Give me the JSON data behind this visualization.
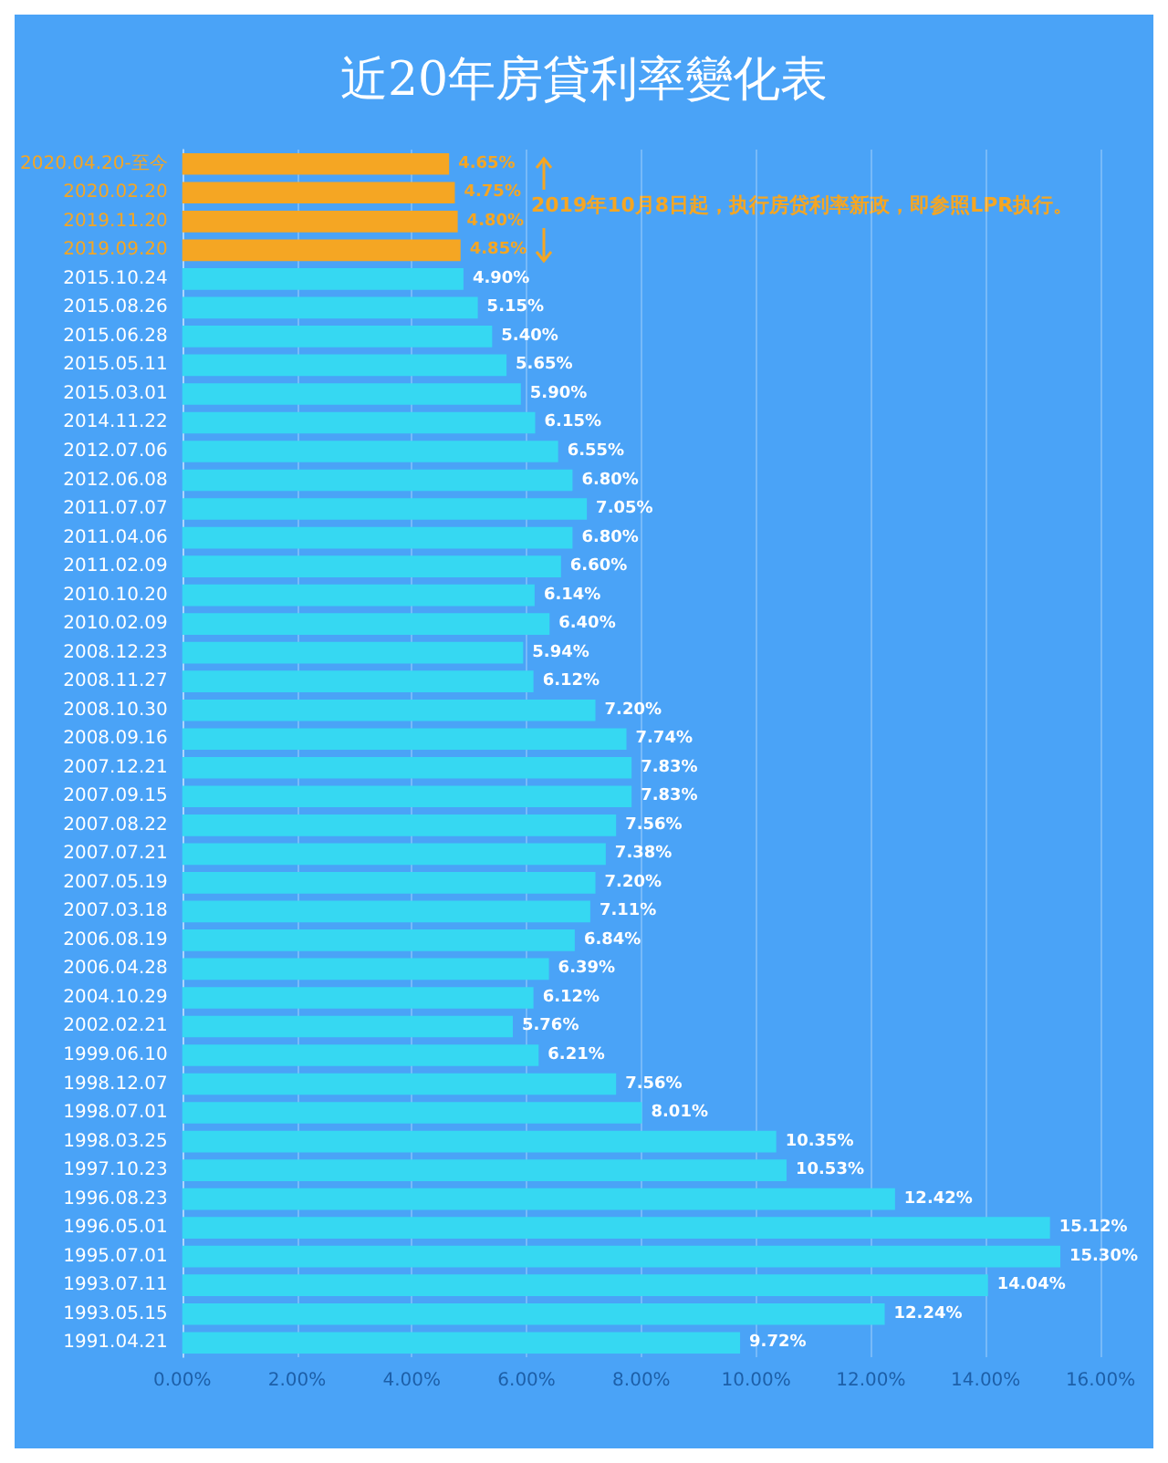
{
  "chart_data": {
    "type": "bar",
    "orientation": "horizontal",
    "title": "近20年房貸利率變化表",
    "categories": [
      "2020.04.20-至今",
      "2020.02.20",
      "2019.11.20",
      "2019.09.20",
      "2015.10.24",
      "2015.08.26",
      "2015.06.28",
      "2015.05.11",
      "2015.03.01",
      "2014.11.22",
      "2012.07.06",
      "2012.06.08",
      "2011.07.07",
      "2011.04.06",
      "2011.02.09",
      "2010.10.20",
      "2010.02.09",
      "2008.12.23",
      "2008.11.27",
      "2008.10.30",
      "2008.09.16",
      "2007.12.21",
      "2007.09.15",
      "2007.08.22",
      "2007.07.21",
      "2007.05.19",
      "2007.03.18",
      "2006.08.19",
      "2006.04.28",
      "2004.10.29",
      "2002.02.21",
      "1999.06.10",
      "1998.12.07",
      "1998.07.01",
      "1998.03.25",
      "1997.10.23",
      "1996.08.23",
      "1996.05.01",
      "1995.07.01",
      "1993.07.11",
      "1993.05.15",
      "1991.04.21"
    ],
    "values": [
      4.65,
      4.75,
      4.8,
      4.85,
      4.9,
      5.15,
      5.4,
      5.65,
      5.9,
      6.15,
      6.55,
      6.8,
      7.05,
      6.8,
      6.6,
      6.14,
      6.4,
      5.94,
      6.12,
      7.2,
      7.74,
      7.83,
      7.83,
      7.56,
      7.38,
      7.2,
      7.11,
      6.84,
      6.39,
      6.12,
      5.76,
      6.21,
      7.56,
      8.01,
      10.35,
      10.53,
      12.42,
      15.12,
      15.3,
      14.04,
      12.24,
      9.72
    ],
    "value_labels": [
      "4.65%",
      "4.75%",
      "4.80%",
      "4.85%",
      "4.90%",
      "5.15%",
      "5.40%",
      "5.65%",
      "5.90%",
      "6.15%",
      "6.55%",
      "6.80%",
      "7.05%",
      "6.80%",
      "6.60%",
      "6.14%",
      "6.40%",
      "5.94%",
      "6.12%",
      "7.20%",
      "7.74%",
      "7.83%",
      "7.83%",
      "7.56%",
      "7.38%",
      "7.20%",
      "7.11%",
      "6.84%",
      "6.39%",
      "6.12%",
      "5.76%",
      "6.21%",
      "7.56%",
      "8.01%",
      "10.35%",
      "10.53%",
      "12.42%",
      "15.12%",
      "15.30%",
      "14.04%",
      "12.24%",
      "9.72%"
    ],
    "colors": [
      "#f5a623",
      "#f5a623",
      "#f5a623",
      "#f5a623",
      "#36d8f2",
      "#36d8f2",
      "#36d8f2",
      "#36d8f2",
      "#36d8f2",
      "#36d8f2",
      "#36d8f2",
      "#36d8f2",
      "#36d8f2",
      "#36d8f2",
      "#36d8f2",
      "#36d8f2",
      "#36d8f2",
      "#36d8f2",
      "#36d8f2",
      "#36d8f2",
      "#36d8f2",
      "#36d8f2",
      "#36d8f2",
      "#36d8f2",
      "#36d8f2",
      "#36d8f2",
      "#36d8f2",
      "#36d8f2",
      "#36d8f2",
      "#36d8f2",
      "#36d8f2",
      "#36d8f2",
      "#36d8f2",
      "#36d8f2",
      "#36d8f2",
      "#36d8f2",
      "#36d8f2",
      "#36d8f2",
      "#36d8f2",
      "#36d8f2",
      "#36d8f2",
      "#36d8f2"
    ],
    "xlim": [
      0,
      16
    ],
    "xticks": [
      {
        "value": 0,
        "label": "0.00%"
      },
      {
        "value": 2,
        "label": "2.00%"
      },
      {
        "value": 4,
        "label": "4.00%"
      },
      {
        "value": 6,
        "label": "6.00%"
      },
      {
        "value": 8,
        "label": "8.00%"
      },
      {
        "value": 10,
        "label": "10.00%"
      },
      {
        "value": 12,
        "label": "12.00%"
      },
      {
        "value": 14,
        "label": "14.00%"
      },
      {
        "value": 16,
        "label": "16.00%"
      }
    ],
    "grid": "x",
    "annotations": [
      "2019年10月8日起，执行房贷利率新政，即参照LPR执行。"
    ]
  }
}
